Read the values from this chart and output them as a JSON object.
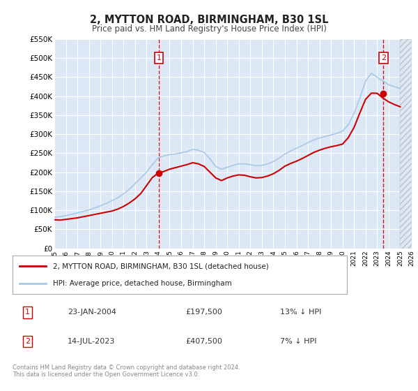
{
  "title": "2, MYTTON ROAD, BIRMINGHAM, B30 1SL",
  "subtitle": "Price paid vs. HM Land Registry's House Price Index (HPI)",
  "ylim": [
    0,
    550000
  ],
  "yticks": [
    0,
    50000,
    100000,
    150000,
    200000,
    250000,
    300000,
    350000,
    400000,
    450000,
    500000,
    550000
  ],
  "ytick_labels": [
    "£0",
    "£50K",
    "£100K",
    "£150K",
    "£200K",
    "£250K",
    "£300K",
    "£350K",
    "£400K",
    "£450K",
    "£500K",
    "£550K"
  ],
  "hpi_color": "#a8c8e8",
  "sold_color": "#cc0000",
  "bg_color": "#ffffff",
  "plot_bg_color": "#dce8f5",
  "grid_color": "#ffffff",
  "annotation1": {
    "label": "1",
    "date": "2004-01-23",
    "price": 197500,
    "x_year": 2004.06
  },
  "annotation2": {
    "label": "2",
    "date": "2023-07-14",
    "price": 407500,
    "x_year": 2023.54
  },
  "legend_line1": "2, MYTTON ROAD, BIRMINGHAM, B30 1SL (detached house)",
  "legend_line2": "HPI: Average price, detached house, Birmingham",
  "table_row1": [
    "1",
    "23-JAN-2004",
    "£197,500",
    "13% ↓ HPI"
  ],
  "table_row2": [
    "2",
    "14-JUL-2023",
    "£407,500",
    "7% ↓ HPI"
  ],
  "footer": "Contains HM Land Registry data © Crown copyright and database right 2024.\nThis data is licensed under the Open Government Licence v3.0.",
  "xmin": 1995,
  "xmax": 2026,
  "hpi_years": [
    1995,
    1995.5,
    1996,
    1996.5,
    1997,
    1997.5,
    1998,
    1998.5,
    1999,
    1999.5,
    2000,
    2000.5,
    2001,
    2001.5,
    2002,
    2002.5,
    2003,
    2003.5,
    2004,
    2004.5,
    2005,
    2005.5,
    2006,
    2006.5,
    2007,
    2007.5,
    2008,
    2008.5,
    2009,
    2009.5,
    2010,
    2010.5,
    2011,
    2011.5,
    2012,
    2012.5,
    2013,
    2013.5,
    2014,
    2014.5,
    2015,
    2015.5,
    2016,
    2016.5,
    2017,
    2017.5,
    2018,
    2018.5,
    2019,
    2019.5,
    2020,
    2020.5,
    2021,
    2021.5,
    2022,
    2022.5,
    2023,
    2023.5,
    2024,
    2024.5,
    2025
  ],
  "hpi_vals": [
    82000,
    83000,
    86000,
    89000,
    93000,
    97000,
    101000,
    106000,
    112000,
    118000,
    125000,
    133000,
    143000,
    155000,
    170000,
    185000,
    200000,
    220000,
    238000,
    243000,
    246000,
    248000,
    251000,
    254000,
    260000,
    258000,
    252000,
    235000,
    215000,
    208000,
    213000,
    218000,
    222000,
    222000,
    220000,
    217000,
    218000,
    222000,
    228000,
    237000,
    248000,
    256000,
    263000,
    270000,
    278000,
    285000,
    290000,
    294000,
    298000,
    302000,
    308000,
    325000,
    355000,
    395000,
    440000,
    460000,
    450000,
    440000,
    430000,
    425000,
    420000
  ],
  "sold_years": [
    1995,
    1995.5,
    1996,
    1996.5,
    1997,
    1997.5,
    1998,
    1998.5,
    1999,
    1999.5,
    2000,
    2000.5,
    2001,
    2001.5,
    2002,
    2002.5,
    2003,
    2003.5,
    2004,
    2004.5,
    2005,
    2005.5,
    2006,
    2006.5,
    2007,
    2007.5,
    2008,
    2008.5,
    2009,
    2009.5,
    2010,
    2010.5,
    2011,
    2011.5,
    2012,
    2012.5,
    2013,
    2013.5,
    2014,
    2014.5,
    2015,
    2015.5,
    2016,
    2016.5,
    2017,
    2017.5,
    2018,
    2018.5,
    2019,
    2019.5,
    2020,
    2020.5,
    2021,
    2021.5,
    2022,
    2022.5,
    2023,
    2023.5,
    2024,
    2024.5,
    2025
  ],
  "sold_vals": [
    75000,
    74000,
    76000,
    78000,
    80000,
    83000,
    86000,
    89000,
    92000,
    95000,
    98000,
    103000,
    110000,
    119000,
    130000,
    144000,
    165000,
    186000,
    197500,
    202000,
    208000,
    212000,
    216000,
    220000,
    225000,
    222000,
    215000,
    200000,
    185000,
    178000,
    185000,
    190000,
    193000,
    192000,
    188000,
    185000,
    186000,
    190000,
    196000,
    205000,
    216000,
    223000,
    229000,
    236000,
    244000,
    252000,
    258000,
    263000,
    267000,
    270000,
    274000,
    291000,
    318000,
    356000,
    392000,
    408000,
    407500,
    395000,
    385000,
    378000,
    372000
  ]
}
